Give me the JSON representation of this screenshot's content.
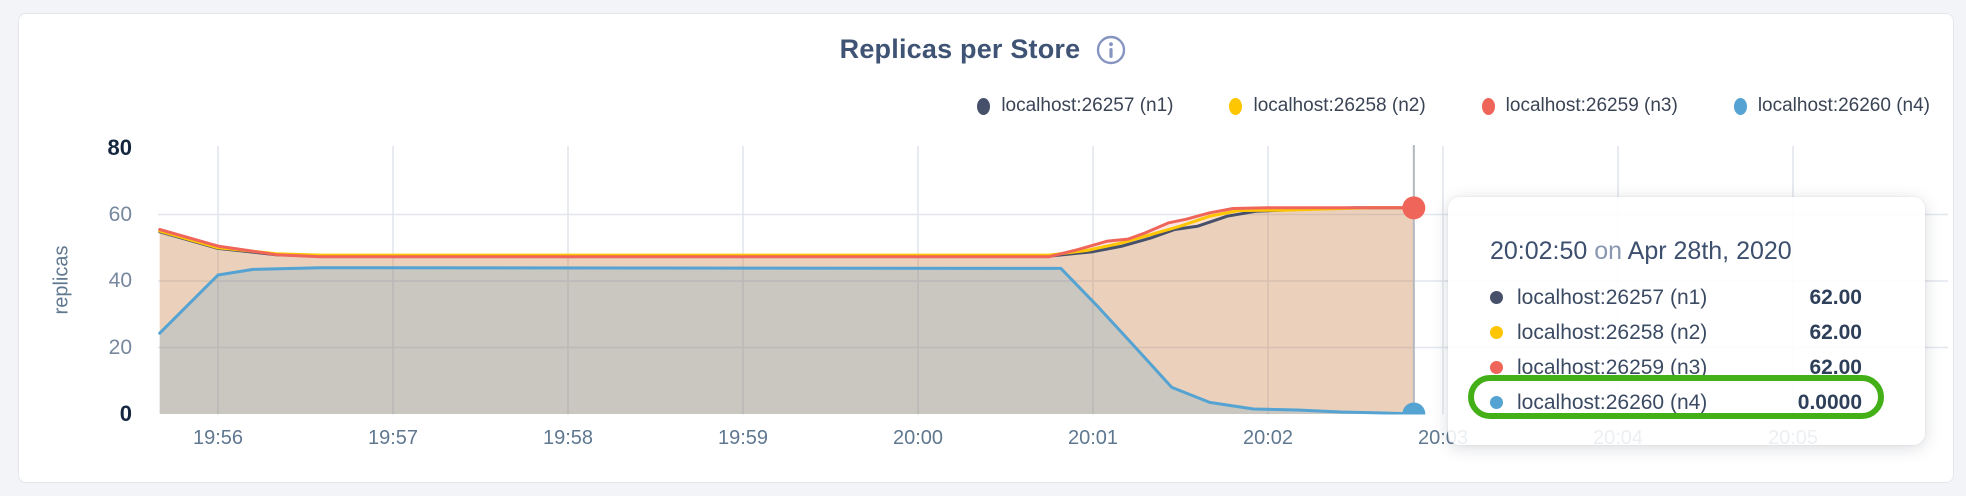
{
  "chart": {
    "title": "Replicas per Store",
    "ylabel": "replicas",
    "info_icon": "info-circle"
  },
  "chart_data": {
    "type": "area",
    "title": "Replicas per Store",
    "ylabel": "replicas",
    "ylim": [
      0,
      80
    ],
    "y_ticks": [
      0,
      20,
      40,
      60,
      80
    ],
    "y_ticks_bold": [
      0,
      80
    ],
    "x_ticks": [
      "19:56",
      "19:57",
      "19:58",
      "19:59",
      "20:00",
      "20:01",
      "20:02",
      "20:03",
      "20:04",
      "20:05"
    ],
    "x_domain": [
      "19:55:40",
      "20:05:53"
    ],
    "grid": true,
    "legend_position": "top-right",
    "series": [
      {
        "name": "localhost:26257 (n1)",
        "color": "#46506a",
        "fill_opacity": 0.12,
        "points": [
          [
            "19:55:40",
            54.8
          ],
          [
            "19:56:00",
            49.8
          ],
          [
            "19:56:20",
            47.9
          ],
          [
            "19:56:35",
            47.5
          ],
          [
            "20:00:45",
            47.5
          ],
          [
            "20:01:00",
            48.8
          ],
          [
            "20:01:10",
            50.5
          ],
          [
            "20:01:20",
            53
          ],
          [
            "20:01:28",
            55.5
          ],
          [
            "20:01:36",
            56.5
          ],
          [
            "20:01:46",
            59.5
          ],
          [
            "20:01:56",
            61
          ],
          [
            "20:02:10",
            61.5
          ],
          [
            "20:02:30",
            62
          ],
          [
            "20:02:50",
            62
          ]
        ]
      },
      {
        "name": "localhost:26258 (n2)",
        "color": "#fdc600",
        "fill_opacity": 0.12,
        "points": [
          [
            "19:55:40",
            55
          ],
          [
            "19:56:00",
            50
          ],
          [
            "19:56:20",
            48.2
          ],
          [
            "19:56:35",
            47.8
          ],
          [
            "20:00:45",
            47.8
          ],
          [
            "20:00:58",
            49.2
          ],
          [
            "20:01:10",
            51.5
          ],
          [
            "20:01:20",
            54
          ],
          [
            "20:01:30",
            56.5
          ],
          [
            "20:01:40",
            59.5
          ],
          [
            "20:01:50",
            61.2
          ],
          [
            "20:02:05",
            61.3
          ],
          [
            "20:02:25",
            61.8
          ],
          [
            "20:02:35",
            62
          ],
          [
            "20:02:50",
            62
          ]
        ]
      },
      {
        "name": "localhost:26259 (n3)",
        "color": "#ef6559",
        "fill_opacity": 0.16,
        "points": [
          [
            "19:55:40",
            55.5
          ],
          [
            "19:56:00",
            50.5
          ],
          [
            "19:56:20",
            47.9
          ],
          [
            "19:56:35",
            47.3
          ],
          [
            "20:00:45",
            47.3
          ],
          [
            "20:00:55",
            49.5
          ],
          [
            "20:01:05",
            52
          ],
          [
            "20:01:12",
            52.6
          ],
          [
            "20:01:18",
            54.5
          ],
          [
            "20:01:26",
            57.5
          ],
          [
            "20:01:32",
            58.6
          ],
          [
            "20:01:40",
            60.5
          ],
          [
            "20:01:48",
            61.8
          ],
          [
            "20:02:00",
            62
          ],
          [
            "20:02:50",
            62
          ]
        ]
      },
      {
        "name": "localhost:26260 (n4)",
        "color": "#55a3d2",
        "fill_opacity": 0.22,
        "points": [
          [
            "19:55:40",
            24.3
          ],
          [
            "19:56:00",
            41.8
          ],
          [
            "19:56:12",
            43.5
          ],
          [
            "19:56:35",
            44
          ],
          [
            "20:00:49",
            43.8
          ],
          [
            "20:01:02",
            32
          ],
          [
            "20:01:13",
            21.5
          ],
          [
            "20:01:27",
            8
          ],
          [
            "20:01:40",
            3.5
          ],
          [
            "20:01:55",
            1.5
          ],
          [
            "20:02:10",
            1.2
          ],
          [
            "20:02:25",
            0.6
          ],
          [
            "20:02:40",
            0.3
          ],
          [
            "20:02:50",
            0
          ]
        ]
      }
    ],
    "hover": {
      "time": "20:02:50",
      "markers": [
        {
          "series_index": 2,
          "value": 62
        },
        {
          "series_index": 3,
          "value": 0
        }
      ]
    }
  },
  "tooltip": {
    "time": "20:02:50",
    "on_word": "on",
    "date": "Apr 28th, 2020",
    "rows": [
      {
        "name": "localhost:26257 (n1)",
        "value": "62.00"
      },
      {
        "name": "localhost:26258 (n2)",
        "value": "62.00"
      },
      {
        "name": "localhost:26259 (n3)",
        "value": "62.00"
      },
      {
        "name": "localhost:26260 (n4)",
        "value": "0.0000",
        "highlighted": true
      }
    ],
    "highlight_color": "#43b018"
  }
}
